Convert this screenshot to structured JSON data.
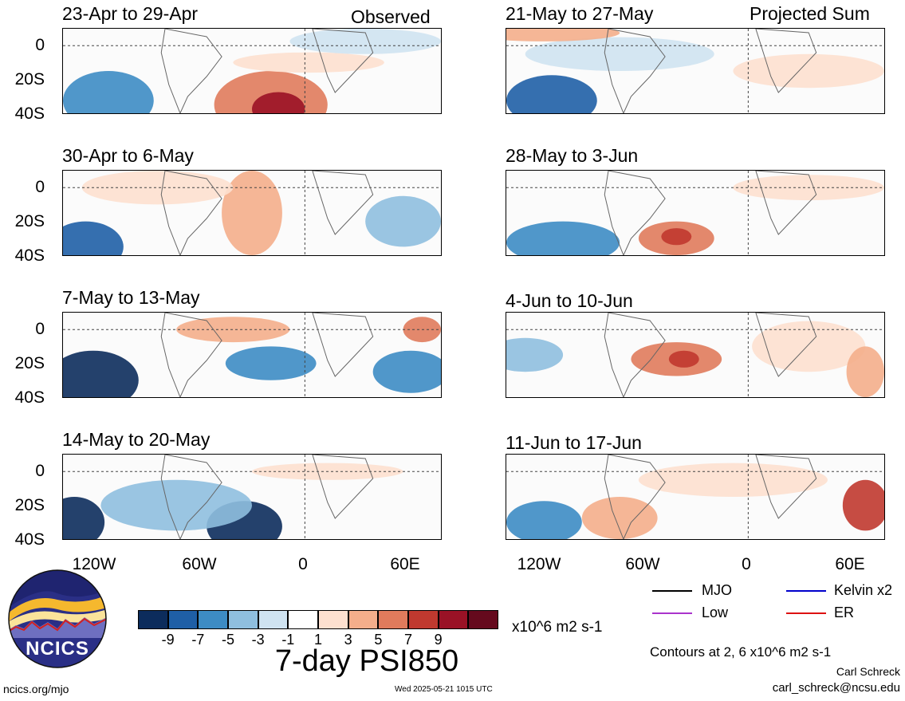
{
  "panels": {
    "observed_label": "Observed",
    "projected_label": "Projected Sum",
    "left": [
      {
        "title": "23-Apr to 29-Apr"
      },
      {
        "title": "30-Apr to 6-May"
      },
      {
        "title": "7-May to 13-May"
      },
      {
        "title": "14-May to 20-May"
      }
    ],
    "right": [
      {
        "title": "21-May to 27-May"
      },
      {
        "title": "28-May to 3-Jun"
      },
      {
        "title": "4-Jun to 10-Jun"
      },
      {
        "title": "11-Jun to 17-Jun"
      }
    ],
    "y_ticks": [
      "0",
      "20S",
      "40S"
    ],
    "x_ticks": [
      "120W",
      "60W",
      "0",
      "60E"
    ]
  },
  "legend": {
    "mjo": "MJO",
    "kelvin": "Kelvin x2",
    "low": "Low",
    "er": "ER",
    "colors": {
      "mjo": "#000000",
      "kelvin": "#0000cc",
      "low": "#aa33cc",
      "er": "#dd1111"
    }
  },
  "colorbar": {
    "colors": [
      "#0c2c5c",
      "#1f5fa6",
      "#3d8cc4",
      "#8fbfdf",
      "#cfe3f1",
      "#ffffff",
      "#fde0cf",
      "#f4ae8b",
      "#e07b5c",
      "#c0392f",
      "#9a1226",
      "#650a1d"
    ],
    "labels": [
      "-9",
      "-7",
      "-5",
      "-3",
      "-1",
      "1",
      "3",
      "5",
      "7",
      "9"
    ],
    "units": "x10^6 m2 s-1"
  },
  "main_title": "7-day PSI850",
  "contours_note": "Contours at 2, 6 x10^6 m2 s-1",
  "author": "Carl Schreck",
  "email": "carl_schreck@ncsu.edu",
  "website": "ncics.org/mjo",
  "timestamp": "Wed 2025-05-21 1015 UTC",
  "logo_text": "NCICS"
}
